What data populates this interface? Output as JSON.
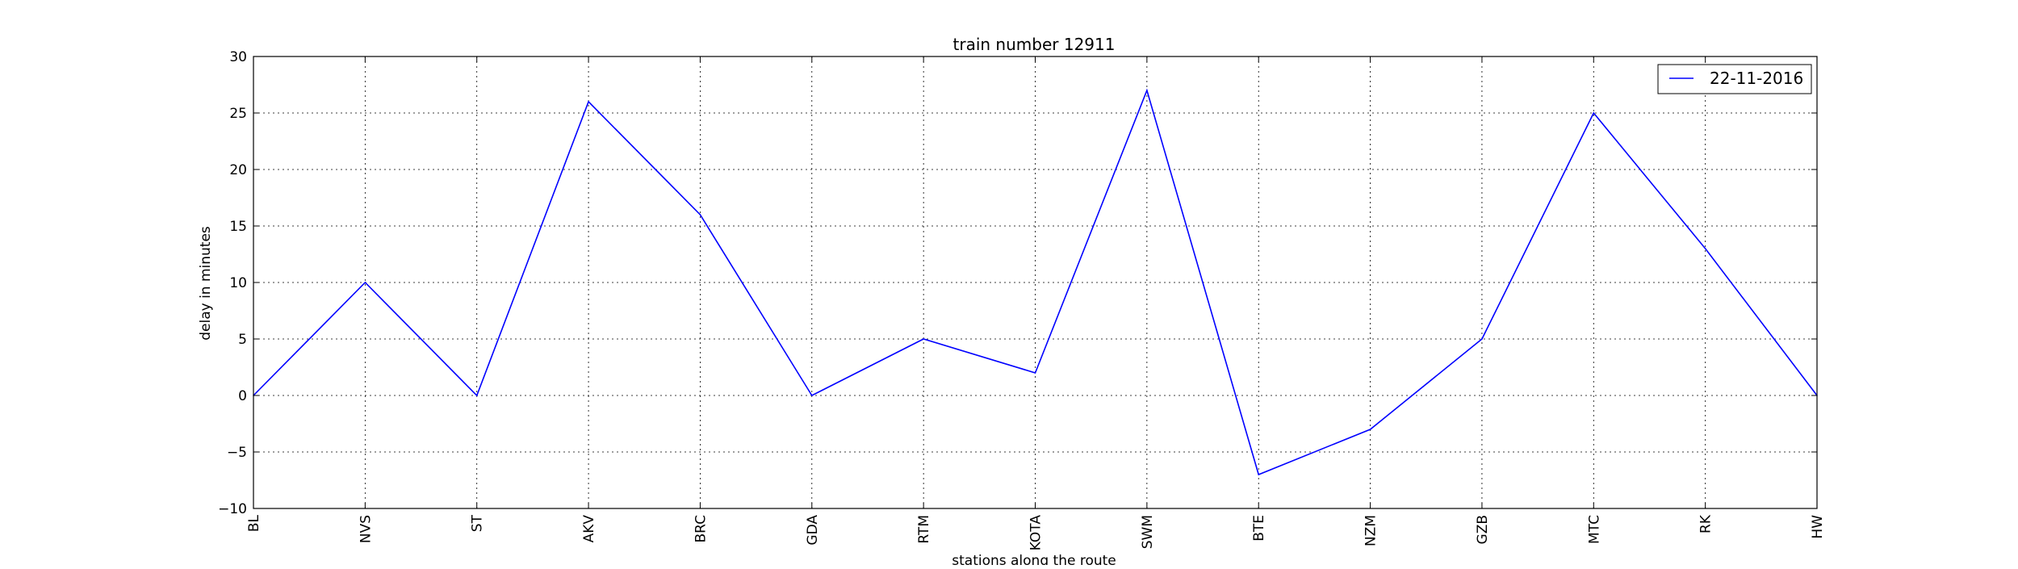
{
  "chart_data": {
    "type": "line",
    "title": "train number 12911",
    "xlabel": "stations along the route",
    "ylabel": "delay in minutes",
    "categories": [
      "BL",
      "NVS",
      "ST",
      "AKV",
      "BRC",
      "GDA",
      "RTM",
      "KOTA",
      "SWM",
      "BTE",
      "NZM",
      "GZB",
      "MTC",
      "RK",
      "HW"
    ],
    "series": [
      {
        "name": "22-11-2016",
        "color": "#0000ff",
        "values": [
          0,
          10,
          0,
          26,
          16,
          0,
          5,
          2,
          27,
          -7,
          -3,
          5,
          25,
          13,
          0
        ]
      }
    ],
    "ylim": [
      -10,
      30
    ],
    "yticks": [
      -10,
      -5,
      0,
      5,
      10,
      15,
      20,
      25,
      30
    ],
    "ytick_labels": [
      "−10",
      "−5",
      "0",
      "5",
      "10",
      "15",
      "20",
      "25",
      "30"
    ],
    "grid": true,
    "legend_position": "top-right"
  }
}
